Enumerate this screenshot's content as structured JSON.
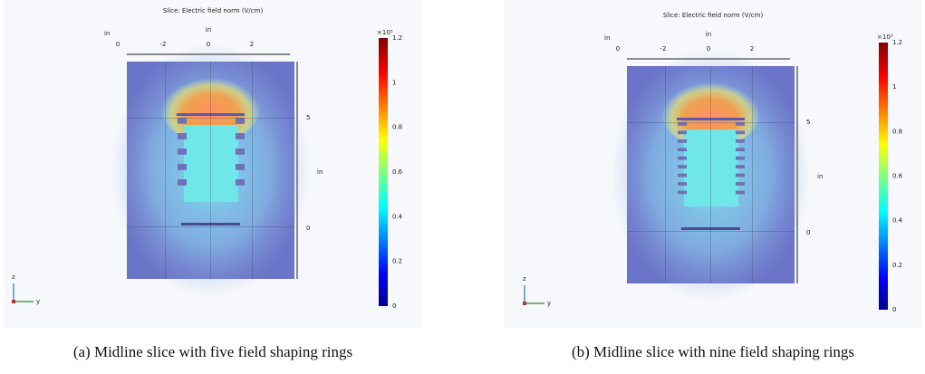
{
  "panels": [
    {
      "title": "Slice: Electric field norm (V/cm)",
      "top_axis_label": "in",
      "left_axis_label": "in",
      "top_axis_ticks": [
        "0",
        "-2",
        "0",
        "2"
      ],
      "right_axis_label": "in",
      "right_axis_ticks": [
        "5",
        "0"
      ],
      "colorbar_multiplier": "×10³",
      "colorbar_ticks": [
        "1.2",
        "1",
        "0.8",
        "0.6",
        "0.4",
        "0.2",
        "0"
      ],
      "triad": [
        "z",
        "y"
      ],
      "caption": "(a) Midline slice with five field shaping rings"
    },
    {
      "title": "Slice: Electric field norm (V/cm)",
      "top_axis_label": "in",
      "left_axis_label": "in",
      "top_axis_ticks": [
        "0",
        "-2",
        "0",
        "2"
      ],
      "right_axis_label": "in",
      "right_axis_ticks": [
        "5",
        "0"
      ],
      "colorbar_multiplier": "×10³",
      "colorbar_ticks": [
        "1.2",
        "1",
        "0.8",
        "0.6",
        "0.4",
        "0.2",
        "0"
      ],
      "triad": [
        "z",
        "y"
      ],
      "caption": "(b) Midline slice with nine field shaping rings"
    }
  ]
}
